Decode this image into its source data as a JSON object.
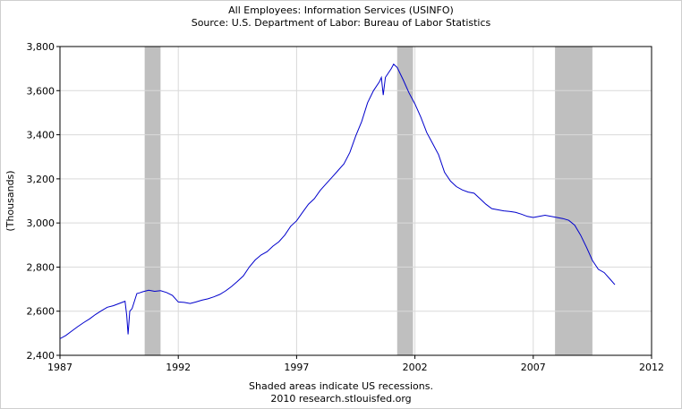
{
  "chart_data": {
    "type": "line",
    "title": "All Employees: Information Services (USINFO)",
    "subtitle": "Source: U.S. Department of Labor: Bureau of Labor Statistics",
    "ylabel": "(Thousands)",
    "xlabel": "",
    "xlim": [
      1987,
      2012
    ],
    "ylim": [
      2400,
      3800
    ],
    "xticks": [
      "1987",
      "1992",
      "1997",
      "2002",
      "2007",
      "2012"
    ],
    "yticks": [
      "2,400",
      "2,600",
      "2,800",
      "3,000",
      "3,200",
      "3,400",
      "3,600",
      "3,800"
    ],
    "grid": true,
    "line_color": "#0000cc",
    "recession_color": "#bfbfbf",
    "recessions": [
      [
        1990.58,
        1991.25
      ],
      [
        2001.25,
        2001.92
      ],
      [
        2007.92,
        2009.5
      ]
    ],
    "x": [
      1987.0,
      1987.25,
      1987.5,
      1987.75,
      1988.0,
      1988.25,
      1988.5,
      1988.75,
      1989.0,
      1989.25,
      1989.5,
      1989.75,
      1989.82,
      1989.88,
      1989.95,
      1990.05,
      1990.25,
      1990.35,
      1990.5,
      1990.75,
      1991.0,
      1991.25,
      1991.5,
      1991.75,
      1992.0,
      1992.25,
      1992.5,
      1992.75,
      1993.0,
      1993.25,
      1993.5,
      1993.75,
      1994.0,
      1994.25,
      1994.5,
      1994.75,
      1995.0,
      1995.25,
      1995.5,
      1995.75,
      1996.0,
      1996.25,
      1996.5,
      1996.75,
      1997.0,
      1997.25,
      1997.5,
      1997.75,
      1998.0,
      1998.25,
      1998.5,
      1998.75,
      1999.0,
      1999.25,
      1999.5,
      1999.75,
      2000.0,
      2000.25,
      2000.5,
      2000.58,
      2000.66,
      2000.75,
      2001.0,
      2001.1,
      2001.25,
      2001.5,
      2001.75,
      2002.0,
      2002.25,
      2002.5,
      2002.75,
      2003.0,
      2003.25,
      2003.5,
      2003.75,
      2004.0,
      2004.25,
      2004.5,
      2004.75,
      2005.0,
      2005.25,
      2005.5,
      2005.75,
      2006.0,
      2006.25,
      2006.5,
      2006.75,
      2007.0,
      2007.25,
      2007.5,
      2007.75,
      2008.0,
      2008.25,
      2008.5,
      2008.75,
      2009.0,
      2009.25,
      2009.5,
      2009.75,
      2010.0,
      2010.25,
      2010.45
    ],
    "y": [
      2475,
      2490,
      2510,
      2530,
      2548,
      2565,
      2585,
      2602,
      2618,
      2625,
      2635,
      2645,
      2580,
      2495,
      2600,
      2612,
      2680,
      2683,
      2688,
      2695,
      2690,
      2693,
      2685,
      2672,
      2642,
      2640,
      2635,
      2642,
      2650,
      2656,
      2665,
      2676,
      2692,
      2712,
      2735,
      2760,
      2800,
      2832,
      2855,
      2870,
      2895,
      2915,
      2945,
      2985,
      3010,
      3048,
      3085,
      3110,
      3148,
      3178,
      3208,
      3238,
      3268,
      3320,
      3395,
      3460,
      3545,
      3600,
      3640,
      3660,
      3580,
      3660,
      3700,
      3720,
      3705,
      3650,
      3590,
      3540,
      3480,
      3410,
      3360,
      3310,
      3230,
      3190,
      3165,
      3150,
      3140,
      3135,
      3110,
      3085,
      3065,
      3060,
      3055,
      3052,
      3048,
      3040,
      3030,
      3025,
      3030,
      3035,
      3030,
      3025,
      3020,
      3012,
      2990,
      2945,
      2890,
      2830,
      2790,
      2775,
      2745,
      2720
    ]
  },
  "footer": {
    "line1": "Shaded areas indicate US recessions.",
    "line2": "2010 research.stlouisfed.org"
  }
}
